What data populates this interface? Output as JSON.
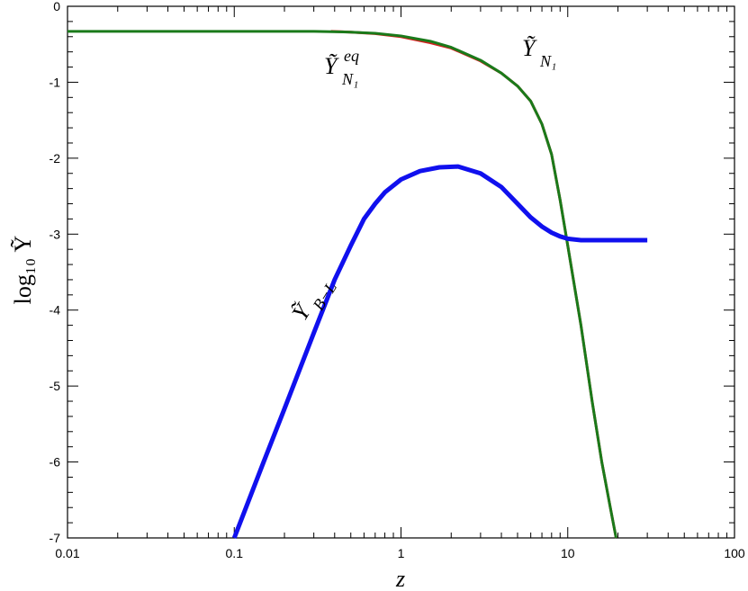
{
  "chart_data": {
    "type": "line",
    "xscale": "log",
    "xlim": [
      0.01,
      100
    ],
    "ylim": [
      -7,
      0
    ],
    "xticks": [
      "0.01",
      "0.1",
      "1",
      "10",
      "100"
    ],
    "yticks": [
      "0",
      "-1",
      "-2",
      "-3",
      "-4",
      "-5",
      "-6",
      "-7"
    ],
    "xlabel": "z",
    "ylabel": "log₁₀ Ỹ",
    "grid": false,
    "series": [
      {
        "name": "Ỹ_N₁^eq",
        "color": "#d42020",
        "points": [
          [
            0.38,
            -0.33
          ],
          [
            0.5,
            -0.34
          ],
          [
            0.7,
            -0.36
          ],
          [
            1.0,
            -0.4
          ],
          [
            1.5,
            -0.48
          ],
          [
            2.0,
            -0.55
          ],
          [
            3.0,
            -0.72
          ],
          [
            4.0,
            -0.88
          ],
          [
            5.0,
            -1.05
          ],
          [
            6.0,
            -1.25
          ],
          [
            7.0,
            -1.55
          ],
          [
            8.0,
            -1.95
          ],
          [
            9.0,
            -2.55
          ],
          [
            10.0,
            -3.15
          ],
          [
            11.0,
            -3.7
          ],
          [
            12.0,
            -4.2
          ],
          [
            14.0,
            -5.2
          ],
          [
            16.0,
            -6.0
          ],
          [
            18.0,
            -6.6
          ],
          [
            19.5,
            -7.0
          ]
        ]
      },
      {
        "name": "Ỹ_N₁",
        "color": "#1a7a1a",
        "points": [
          [
            0.01,
            -0.33
          ],
          [
            0.1,
            -0.33
          ],
          [
            0.3,
            -0.33
          ],
          [
            0.5,
            -0.34
          ],
          [
            0.7,
            -0.355
          ],
          [
            1.0,
            -0.39
          ],
          [
            1.5,
            -0.46
          ],
          [
            2.0,
            -0.54
          ],
          [
            3.0,
            -0.71
          ],
          [
            4.0,
            -0.88
          ],
          [
            5.0,
            -1.05
          ],
          [
            6.0,
            -1.25
          ],
          [
            7.0,
            -1.55
          ],
          [
            8.0,
            -1.95
          ],
          [
            9.0,
            -2.55
          ],
          [
            10.0,
            -3.15
          ],
          [
            11.0,
            -3.7
          ],
          [
            12.0,
            -4.2
          ],
          [
            14.0,
            -5.2
          ],
          [
            16.0,
            -6.0
          ],
          [
            18.0,
            -6.6
          ],
          [
            19.5,
            -7.0
          ]
        ]
      },
      {
        "name": "Ỹ_B−L",
        "color": "#1010ee",
        "points": [
          [
            0.1,
            -7.0
          ],
          [
            0.15,
            -6.0
          ],
          [
            0.2,
            -5.3
          ],
          [
            0.3,
            -4.3
          ],
          [
            0.4,
            -3.6
          ],
          [
            0.5,
            -3.15
          ],
          [
            0.6,
            -2.8
          ],
          [
            0.7,
            -2.6
          ],
          [
            0.8,
            -2.45
          ],
          [
            1.0,
            -2.28
          ],
          [
            1.3,
            -2.17
          ],
          [
            1.7,
            -2.12
          ],
          [
            2.2,
            -2.11
          ],
          [
            3.0,
            -2.2
          ],
          [
            4.0,
            -2.38
          ],
          [
            5.0,
            -2.6
          ],
          [
            6.0,
            -2.78
          ],
          [
            7.0,
            -2.9
          ],
          [
            8.0,
            -2.98
          ],
          [
            9.0,
            -3.03
          ],
          [
            10.0,
            -3.06
          ],
          [
            12.0,
            -3.08
          ],
          [
            15.0,
            -3.08
          ],
          [
            20.0,
            -3.08
          ],
          [
            30.0,
            -3.08
          ]
        ]
      }
    ],
    "annotations": [
      {
        "id": "eq",
        "base": "Ỹ",
        "sub": "N₁",
        "sup": "eq"
      },
      {
        "id": "n1",
        "base": "Ỹ",
        "sub": "N₁"
      },
      {
        "id": "bl",
        "base": "Ỹ",
        "sub": "B−L"
      }
    ]
  }
}
